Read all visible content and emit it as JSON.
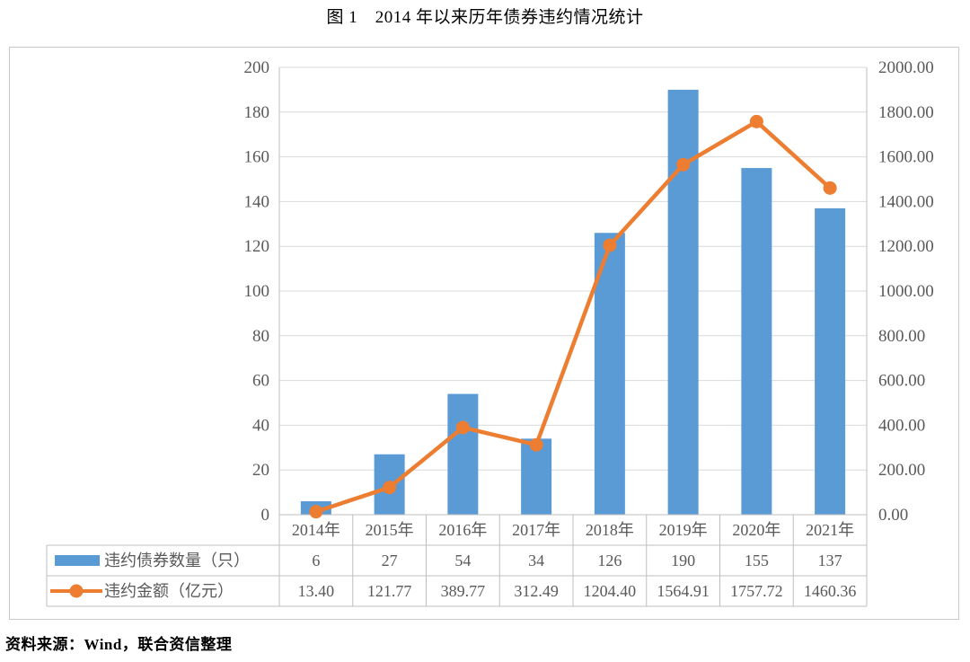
{
  "figure": {
    "title": "图 1　2014 年以来历年债券违约情况统计",
    "source_note": "资料来源：Wind，联合资信整理"
  },
  "chart_data": {
    "type": "combo",
    "title": "图 1　2014 年以来历年债券违约情况统计",
    "categories": [
      "2014年",
      "2015年",
      "2016年",
      "2017年",
      "2018年",
      "2019年",
      "2020年",
      "2021年"
    ],
    "series": [
      {
        "name": "违约债券数量（只）",
        "type": "bar",
        "axis": "left",
        "color": "#5B9BD5",
        "values": [
          6,
          27,
          54,
          34,
          126,
          190,
          155,
          137
        ]
      },
      {
        "name": "违约金额（亿元）",
        "type": "line",
        "axis": "right",
        "color": "#ED7D31",
        "marker": "circle",
        "values": [
          13.4,
          121.77,
          389.77,
          312.49,
          1204.4,
          1564.91,
          1757.72,
          1460.36
        ],
        "value_labels": [
          "13.40",
          "121.77",
          "389.77",
          "312.49",
          "1204.40",
          "1564.91",
          "1757.72",
          "1460.36"
        ]
      }
    ],
    "left_axis": {
      "min": 0,
      "max": 200,
      "step": 20,
      "tick_labels": [
        "0",
        "20",
        "40",
        "60",
        "80",
        "100",
        "120",
        "140",
        "160",
        "180",
        "200"
      ]
    },
    "right_axis": {
      "min": 0,
      "max": 2000,
      "step": 200,
      "tick_labels": [
        "0.00",
        "200.00",
        "400.00",
        "600.00",
        "800.00",
        "1000.00",
        "1200.00",
        "1400.00",
        "1600.00",
        "1800.00",
        "2000.00"
      ]
    },
    "grid": true,
    "legend_position": "bottom-data-table",
    "colors": {
      "bar": "#5B9BD5",
      "line": "#ED7D31",
      "gridline": "#D9D9D9",
      "axis_line": "#BFBFBF",
      "table_border": "#BFBFBF",
      "tick_text": "#595959",
      "table_text": "#595959",
      "title_text": "#000000"
    }
  }
}
